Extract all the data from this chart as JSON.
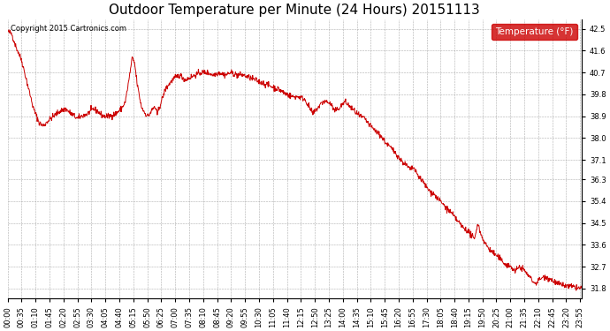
{
  "title": "Outdoor Temperature per Minute (24 Hours) 20151113",
  "copyright_text": "Copyright 2015 Cartronics.com",
  "legend_label": "Temperature (°F)",
  "line_color": "#cc0000",
  "background_color": "#ffffff",
  "grid_color": "#999999",
  "ylim": [
    31.4,
    42.9
  ],
  "yticks": [
    31.8,
    32.7,
    33.6,
    34.5,
    35.4,
    36.3,
    37.1,
    38.0,
    38.9,
    39.8,
    40.7,
    41.6,
    42.5
  ],
  "total_minutes": 1440,
  "xtick_interval_minutes": 35,
  "title_fontsize": 11,
  "axis_fontsize": 6.0,
  "keypoints": [
    [
      0,
      42.4
    ],
    [
      10,
      42.3
    ],
    [
      20,
      41.8
    ],
    [
      35,
      41.2
    ],
    [
      50,
      40.2
    ],
    [
      65,
      39.2
    ],
    [
      80,
      38.6
    ],
    [
      90,
      38.5
    ],
    [
      100,
      38.7
    ],
    [
      115,
      38.9
    ],
    [
      130,
      39.1
    ],
    [
      145,
      39.2
    ],
    [
      160,
      39.0
    ],
    [
      175,
      38.8
    ],
    [
      185,
      38.9
    ],
    [
      200,
      39.0
    ],
    [
      215,
      39.2
    ],
    [
      225,
      39.1
    ],
    [
      240,
      38.9
    ],
    [
      255,
      38.9
    ],
    [
      270,
      39.0
    ],
    [
      285,
      39.2
    ],
    [
      295,
      39.5
    ],
    [
      305,
      40.5
    ],
    [
      312,
      41.3
    ],
    [
      318,
      41.1
    ],
    [
      325,
      40.2
    ],
    [
      335,
      39.3
    ],
    [
      345,
      39.0
    ],
    [
      352,
      38.9
    ],
    [
      360,
      39.1
    ],
    [
      368,
      39.3
    ],
    [
      375,
      39.0
    ],
    [
      385,
      39.5
    ],
    [
      395,
      40.0
    ],
    [
      408,
      40.3
    ],
    [
      420,
      40.5
    ],
    [
      432,
      40.6
    ],
    [
      445,
      40.4
    ],
    [
      458,
      40.5
    ],
    [
      470,
      40.6
    ],
    [
      485,
      40.7
    ],
    [
      500,
      40.7
    ],
    [
      515,
      40.6
    ],
    [
      530,
      40.7
    ],
    [
      545,
      40.6
    ],
    [
      560,
      40.7
    ],
    [
      575,
      40.6
    ],
    [
      590,
      40.6
    ],
    [
      605,
      40.5
    ],
    [
      620,
      40.4
    ],
    [
      635,
      40.3
    ],
    [
      650,
      40.2
    ],
    [
      665,
      40.1
    ],
    [
      680,
      40.0
    ],
    [
      700,
      39.8
    ],
    [
      715,
      39.7
    ],
    [
      730,
      39.7
    ],
    [
      745,
      39.6
    ],
    [
      755,
      39.3
    ],
    [
      765,
      39.0
    ],
    [
      775,
      39.2
    ],
    [
      790,
      39.5
    ],
    [
      800,
      39.5
    ],
    [
      810,
      39.4
    ],
    [
      820,
      39.1
    ],
    [
      835,
      39.3
    ],
    [
      845,
      39.5
    ],
    [
      858,
      39.3
    ],
    [
      870,
      39.1
    ],
    [
      882,
      38.9
    ],
    [
      895,
      38.8
    ],
    [
      908,
      38.5
    ],
    [
      922,
      38.3
    ],
    [
      935,
      38.1
    ],
    [
      948,
      37.8
    ],
    [
      960,
      37.6
    ],
    [
      972,
      37.4
    ],
    [
      985,
      37.1
    ],
    [
      998,
      36.9
    ],
    [
      1010,
      36.7
    ],
    [
      1018,
      36.8
    ],
    [
      1022,
      36.6
    ],
    [
      1032,
      36.4
    ],
    [
      1045,
      36.1
    ],
    [
      1058,
      35.8
    ],
    [
      1068,
      35.7
    ],
    [
      1078,
      35.5
    ],
    [
      1090,
      35.3
    ],
    [
      1100,
      35.1
    ],
    [
      1112,
      34.9
    ],
    [
      1122,
      34.7
    ],
    [
      1132,
      34.5
    ],
    [
      1142,
      34.3
    ],
    [
      1152,
      34.2
    ],
    [
      1162,
      34.0
    ],
    [
      1170,
      33.8
    ],
    [
      1178,
      34.5
    ],
    [
      1185,
      34.1
    ],
    [
      1195,
      33.7
    ],
    [
      1208,
      33.4
    ],
    [
      1222,
      33.2
    ],
    [
      1235,
      33.0
    ],
    [
      1248,
      32.8
    ],
    [
      1261,
      32.7
    ],
    [
      1272,
      32.5
    ],
    [
      1283,
      32.7
    ],
    [
      1292,
      32.6
    ],
    [
      1302,
      32.4
    ],
    [
      1312,
      32.2
    ],
    [
      1322,
      32.0
    ],
    [
      1335,
      32.2
    ],
    [
      1348,
      32.3
    ],
    [
      1358,
      32.2
    ],
    [
      1368,
      32.1
    ],
    [
      1378,
      32.0
    ],
    [
      1388,
      31.95
    ],
    [
      1400,
      31.9
    ],
    [
      1410,
      31.88
    ],
    [
      1420,
      31.85
    ],
    [
      1430,
      31.82
    ],
    [
      1439,
      31.8
    ]
  ]
}
